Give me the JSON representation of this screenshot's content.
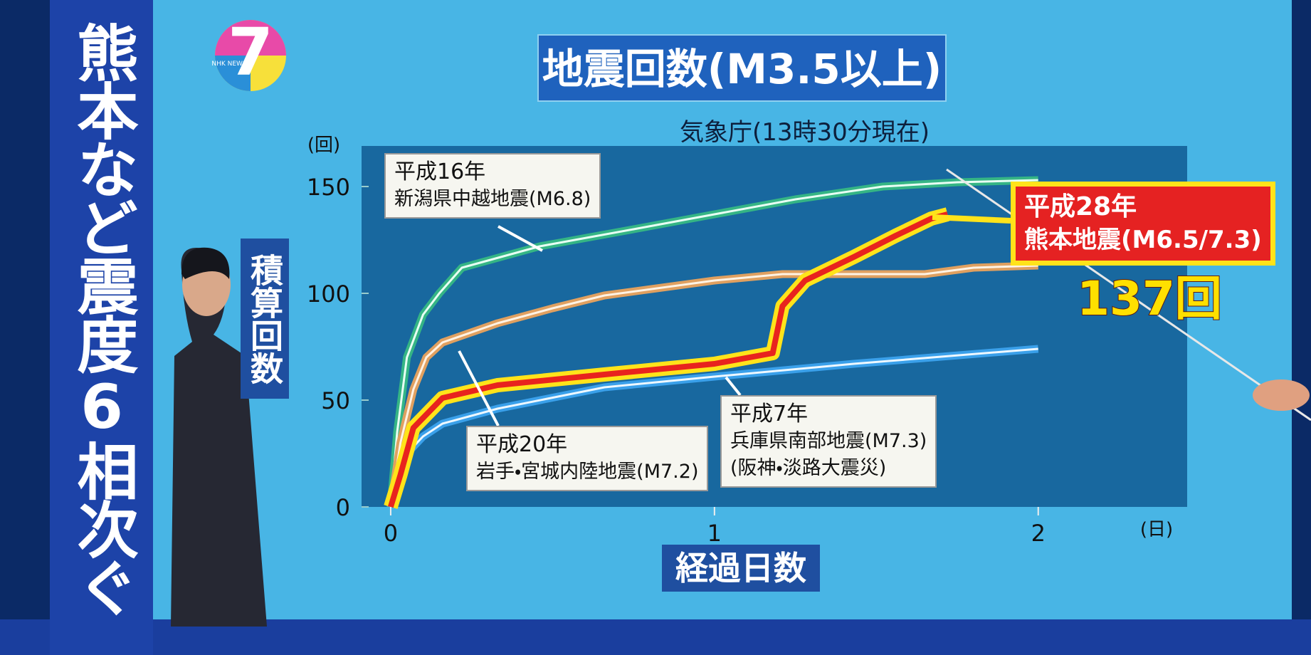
{
  "banner": "熊本など震度6相次ぐ",
  "logo": {
    "number": "7",
    "text": "NHK NEWS"
  },
  "chart_data": {
    "type": "line",
    "title": "地震回数(M3.5以上)",
    "subtitle": "気象庁(13時30分現在)",
    "y_label": "積算回数",
    "y_unit": "(回)",
    "x_label": "経過日数",
    "x_unit": "(日)",
    "xlim": [
      -0.09,
      2.46
    ],
    "ylim": [
      0,
      169
    ],
    "xticks": [
      0,
      1,
      2
    ],
    "yticks": [
      0,
      50,
      100,
      150
    ],
    "grid": false,
    "series": [
      {
        "name": "平成16年",
        "detail": [
          "新潟県中越地震(M6.8)"
        ],
        "color": "#35b585",
        "outline": "#e8fff4",
        "x": [
          0,
          0.02,
          0.05,
          0.1,
          0.15,
          0.22,
          0.46,
          0.75,
          1.0,
          1.25,
          1.52,
          1.75,
          2.0
        ],
        "values": [
          0,
          35,
          70,
          90,
          100,
          112,
          122,
          130,
          137,
          144,
          150,
          152,
          153
        ]
      },
      {
        "name": "平成20年",
        "detail": [
          "岩手・宮城内陸地震(M7.2)"
        ],
        "color": "#e0a060",
        "outline": "#fff3e4",
        "x": [
          0,
          0.03,
          0.07,
          0.11,
          0.16,
          0.33,
          0.5,
          0.66,
          1.0,
          1.21,
          1.65,
          1.8,
          2.0
        ],
        "values": [
          0,
          30,
          55,
          70,
          77,
          86,
          93,
          99,
          106,
          109,
          109,
          112,
          113
        ]
      },
      {
        "name": "平成7年",
        "detail": [
          "兵庫県南部地震(M7.3)",
          "(阪神・淡路大震災)"
        ],
        "color": "#3aa0ea",
        "outline": "#eef8ff",
        "x": [
          0,
          0.05,
          0.1,
          0.16,
          0.33,
          0.66,
          1.0,
          1.43,
          2.0
        ],
        "values": [
          0,
          25,
          33,
          39,
          46,
          56,
          61,
          67,
          74
        ]
      },
      {
        "name": "平成28年",
        "detail": [
          "熊本地震(M6.5/7.3)"
        ],
        "color": "#e8231e",
        "outline": "#ffe31a",
        "x": [
          0,
          0.03,
          0.07,
          0.16,
          0.33,
          0.66,
          1.0,
          1.18,
          1.21,
          1.28,
          1.43,
          1.56,
          1.67,
          1.72
        ],
        "values": [
          0,
          15,
          37,
          51,
          57,
          62,
          67,
          72,
          94,
          106,
          117,
          127,
          135,
          137
        ],
        "value_labels": [
          null,
          null,
          null,
          null,
          null,
          null,
          null,
          null,
          null,
          null,
          null,
          null,
          null,
          "137回"
        ]
      }
    ]
  }
}
